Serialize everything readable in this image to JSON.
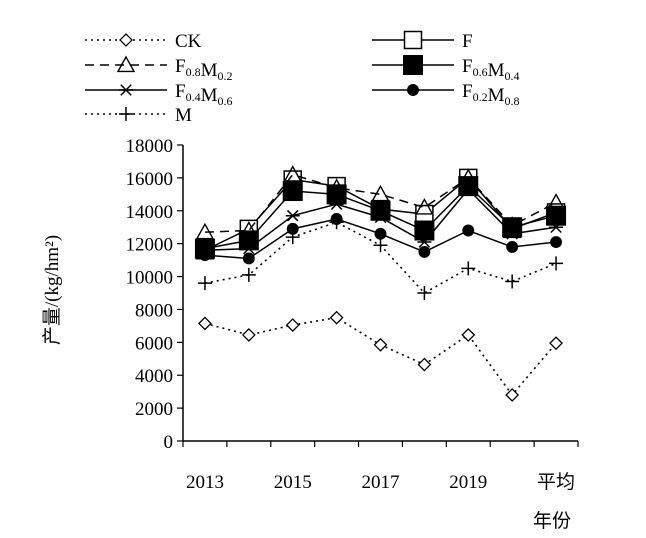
{
  "chart_data": {
    "type": "line",
    "categories": [
      "2013",
      "2014",
      "2015",
      "2016",
      "2017",
      "2018",
      "2019",
      "2020",
      "平均"
    ],
    "x_tick_labels": [
      "2013",
      "",
      "2015",
      "",
      "2017",
      "",
      "2019",
      "",
      "平均"
    ],
    "xlabel": "年份",
    "ylabel": "产量/(kg/hm²)",
    "ylim": [
      0,
      18000
    ],
    "yticks": [
      0,
      2000,
      4000,
      6000,
      8000,
      10000,
      12000,
      14000,
      16000,
      18000
    ],
    "grid": false,
    "legend_position": "top",
    "series": [
      {
        "name": "CK",
        "name_base": [
          "CK"
        ],
        "name_sub": [
          ""
        ],
        "marker": "diamond-open",
        "line": "dotted",
        "values": [
          7150,
          6450,
          7050,
          7500,
          5850,
          4650,
          6450,
          2800,
          5950
        ]
      },
      {
        "name": "F",
        "name_base": [
          "F"
        ],
        "name_sub": [
          ""
        ],
        "marker": "square-open",
        "line": "solid",
        "values": [
          11600,
          12900,
          15900,
          15500,
          14100,
          13800,
          16000,
          12900,
          13900
        ]
      },
      {
        "name": "F0.8M0.2",
        "name_base": [
          "F",
          "M"
        ],
        "name_sub": [
          "0.8",
          "0.2"
        ],
        "marker": "triangle-open",
        "line": "dashed",
        "values": [
          12700,
          12800,
          16200,
          15400,
          15000,
          14200,
          16000,
          13100,
          14500
        ]
      },
      {
        "name": "F0.6M0.4",
        "name_base": [
          "F",
          "M"
        ],
        "name_sub": [
          "0.6",
          "0.4"
        ],
        "marker": "square-filled",
        "line": "solid",
        "values": [
          11700,
          12200,
          15200,
          15000,
          14000,
          12800,
          15500,
          13000,
          13700
        ]
      },
      {
        "name": "F0.4M0.6",
        "name_base": [
          "F",
          "M"
        ],
        "name_sub": [
          "0.4",
          "0.6"
        ],
        "marker": "asterisk",
        "line": "solid",
        "values": [
          11600,
          11700,
          13700,
          14400,
          13600,
          12100,
          15300,
          12600,
          13000
        ]
      },
      {
        "name": "F0.2M0.8",
        "name_base": [
          "F",
          "M"
        ],
        "name_sub": [
          "0.2",
          "0.8"
        ],
        "marker": "circle-filled",
        "line": "solid",
        "values": [
          11300,
          11100,
          12900,
          13500,
          12600,
          11500,
          12800,
          11800,
          12100
        ]
      },
      {
        "name": "M",
        "name_base": [
          "M"
        ],
        "name_sub": [
          ""
        ],
        "marker": "plus",
        "line": "dotted",
        "values": [
          9600,
          10100,
          12400,
          13300,
          11900,
          9000,
          10500,
          9700,
          10800
        ]
      }
    ]
  }
}
